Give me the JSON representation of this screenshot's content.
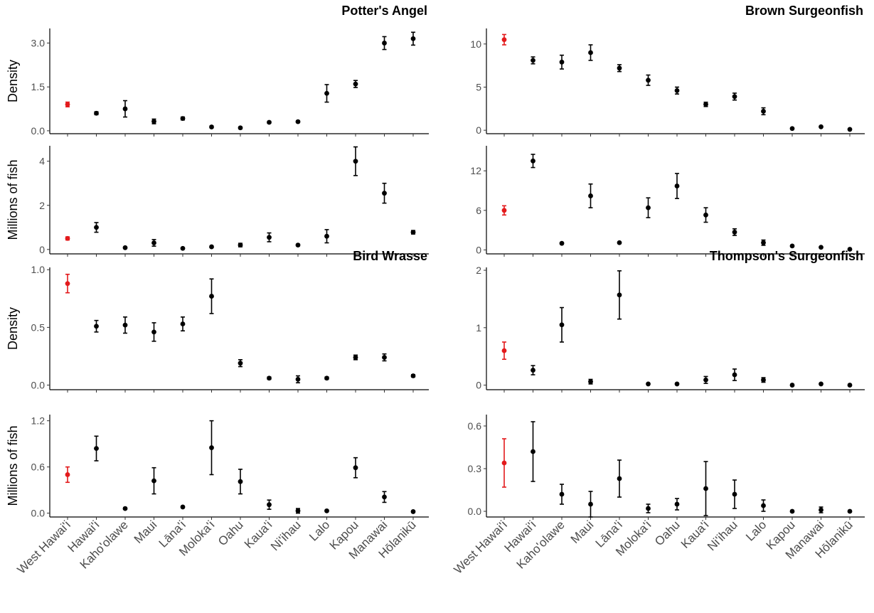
{
  "chart_data": {
    "type": "scatter",
    "x_categories": [
      "West Hawai'i",
      "Hawai'i",
      "Kaho'olawe",
      "Maui",
      "Lāna'i",
      "Moloka'i",
      "Oahu",
      "Kaua'i",
      "Ni'ihau",
      "Lalo",
      "Kapou",
      "Manawai",
      "Hōlanikū"
    ],
    "highlight_category": "West Hawai'i",
    "highlight_color": "#e31a1c",
    "point_color": "#000000",
    "species": [
      {
        "name": "Potter's Angel",
        "panels": [
          {
            "ylabel": "Density",
            "ylim": [
              -0.1,
              3.5
            ],
            "ticks": [
              0.0,
              1.5,
              3.0
            ],
            "tick_labels": [
              "0.0",
              "1.5",
              "3.0"
            ],
            "values": [
              0.9,
              0.6,
              0.75,
              0.32,
              0.42,
              0.13,
              0.1,
              0.29,
              0.31,
              1.28,
              1.6,
              3.0,
              3.15
            ],
            "lower": [
              0.82,
              0.55,
              0.47,
              0.24,
              0.37,
              0.1,
              0.07,
              0.26,
              0.28,
              0.98,
              1.48,
              2.78,
              2.93
            ],
            "upper": [
              0.98,
              0.65,
              1.03,
              0.4,
              0.47,
              0.16,
              0.13,
              0.32,
              0.34,
              1.58,
              1.72,
              3.22,
              3.37
            ]
          },
          {
            "ylabel": "Millions of fish",
            "ylim": [
              -0.2,
              4.7
            ],
            "ticks": [
              0,
              2,
              4
            ],
            "tick_labels": [
              "0",
              "2",
              "4"
            ],
            "values": [
              0.5,
              1.0,
              0.08,
              0.3,
              0.05,
              0.12,
              0.2,
              0.55,
              0.2,
              0.6,
              4.0,
              2.55,
              0.78
            ],
            "lower": [
              0.43,
              0.78,
              0.06,
              0.15,
              0.04,
              0.09,
              0.12,
              0.35,
              0.16,
              0.3,
              3.35,
              2.1,
              0.7
            ],
            "upper": [
              0.57,
              1.22,
              0.1,
              0.45,
              0.06,
              0.15,
              0.28,
              0.75,
              0.24,
              0.9,
              4.65,
              3.0,
              0.86
            ]
          }
        ]
      },
      {
        "name": "Brown Surgeonfish",
        "panels": [
          {
            "ylabel": "",
            "ylim": [
              -0.4,
              11.8
            ],
            "ticks": [
              0,
              5,
              10
            ],
            "tick_labels": [
              "0",
              "5",
              "10"
            ],
            "values": [
              10.5,
              8.1,
              7.9,
              9.0,
              7.2,
              5.8,
              4.6,
              3.0,
              3.9,
              2.2,
              0.2,
              0.4,
              0.1
            ],
            "lower": [
              9.9,
              7.7,
              7.1,
              8.1,
              6.8,
              5.2,
              4.2,
              2.75,
              3.5,
              1.8,
              0.15,
              0.35,
              0.07
            ],
            "upper": [
              11.1,
              8.5,
              8.7,
              9.9,
              7.6,
              6.4,
              5.0,
              3.25,
              4.3,
              2.6,
              0.25,
              0.45,
              0.13
            ]
          },
          {
            "ylabel": "",
            "ylim": [
              -0.6,
              15.8
            ],
            "ticks": [
              0,
              6,
              12
            ],
            "tick_labels": [
              "0",
              "6",
              "12"
            ],
            "values": [
              6.0,
              13.5,
              1.0,
              8.2,
              1.1,
              6.4,
              9.7,
              5.3,
              2.7,
              1.1,
              0.6,
              0.4,
              0.1
            ],
            "lower": [
              5.3,
              12.5,
              0.9,
              6.4,
              1.0,
              4.9,
              7.8,
              4.2,
              2.2,
              0.7,
              0.5,
              0.35,
              0.07
            ],
            "upper": [
              6.7,
              14.5,
              1.1,
              10.0,
              1.2,
              7.9,
              11.6,
              6.4,
              3.2,
              1.5,
              0.7,
              0.45,
              0.13
            ]
          }
        ]
      },
      {
        "name": "Bird Wrasse",
        "panels": [
          {
            "ylabel": "Density",
            "ylim": [
              -0.04,
              1.02
            ],
            "ticks": [
              0.0,
              0.5,
              1.0
            ],
            "tick_labels": [
              "0.0",
              "0.5",
              "1.0"
            ],
            "values": [
              0.88,
              0.51,
              0.52,
              0.46,
              0.53,
              0.77,
              0.19,
              0.06,
              0.05,
              0.06,
              0.24,
              0.24,
              0.08
            ],
            "lower": [
              0.8,
              0.46,
              0.45,
              0.38,
              0.47,
              0.62,
              0.16,
              0.05,
              0.02,
              0.05,
              0.22,
              0.21,
              0.07
            ],
            "upper": [
              0.96,
              0.56,
              0.59,
              0.54,
              0.59,
              0.92,
              0.22,
              0.07,
              0.08,
              0.07,
              0.26,
              0.27,
              0.09
            ]
          },
          {
            "ylabel": "Millions of fish",
            "ylim": [
              -0.05,
              1.28
            ],
            "ticks": [
              0.0,
              0.6,
              1.2
            ],
            "tick_labels": [
              "0.0",
              "0.6",
              "1.2"
            ],
            "values": [
              0.5,
              0.84,
              0.06,
              0.42,
              0.08,
              0.85,
              0.41,
              0.11,
              0.03,
              0.03,
              0.59,
              0.21,
              0.02
            ],
            "lower": [
              0.4,
              0.68,
              0.05,
              0.25,
              0.07,
              0.5,
              0.25,
              0.05,
              0.0,
              0.02,
              0.46,
              0.14,
              0.01
            ],
            "upper": [
              0.6,
              1.0,
              0.07,
              0.59,
              0.09,
              1.2,
              0.57,
              0.17,
              0.06,
              0.04,
              0.72,
              0.28,
              0.03
            ]
          }
        ]
      },
      {
        "name": "Thompson's Surgeonfish",
        "panels": [
          {
            "ylabel": "",
            "ylim": [
              -0.08,
              2.05
            ],
            "ticks": [
              0,
              1,
              2
            ],
            "tick_labels": [
              "0",
              "1",
              "2"
            ],
            "values": [
              0.6,
              0.26,
              1.05,
              0.06,
              1.57,
              0.02,
              0.02,
              0.09,
              0.18,
              0.09,
              0.0,
              0.02,
              0.0
            ],
            "lower": [
              0.45,
              0.18,
              0.75,
              0.02,
              1.15,
              0.01,
              0.01,
              0.03,
              0.08,
              0.05,
              0.0,
              0.01,
              0.0
            ],
            "upper": [
              0.75,
              0.34,
              1.35,
              0.1,
              1.99,
              0.03,
              0.03,
              0.15,
              0.28,
              0.13,
              0.0,
              0.03,
              0.0
            ]
          },
          {
            "ylabel": "",
            "ylim": [
              -0.04,
              0.68
            ],
            "ticks": [
              0.0,
              0.3,
              0.6
            ],
            "tick_labels": [
              "0.0",
              "0.3",
              "0.6"
            ],
            "values": [
              0.34,
              0.42,
              0.12,
              0.05,
              0.23,
              0.02,
              0.05,
              0.16,
              0.12,
              0.04,
              0.0,
              0.01,
              0.0
            ],
            "lower": [
              0.17,
              0.21,
              0.05,
              -0.04,
              0.1,
              -0.01,
              0.01,
              -0.03,
              0.02,
              0.0,
              0.0,
              -0.01,
              0.0
            ],
            "upper": [
              0.51,
              0.63,
              0.19,
              0.14,
              0.36,
              0.05,
              0.09,
              0.35,
              0.22,
              0.08,
              0.0,
              0.03,
              0.0
            ]
          }
        ]
      }
    ]
  }
}
